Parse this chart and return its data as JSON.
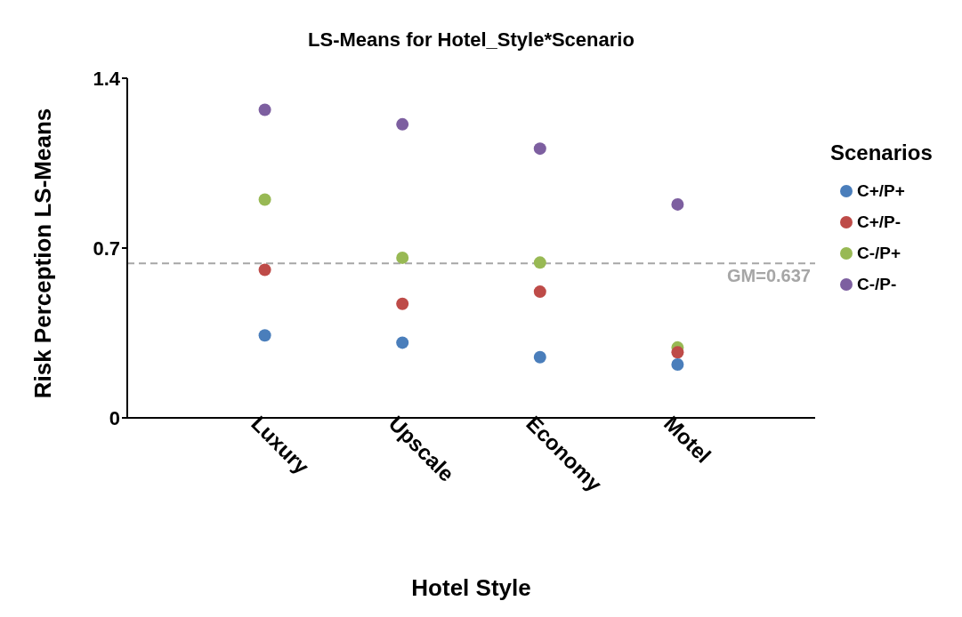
{
  "chart_data": {
    "type": "scatter",
    "title": "LS-Means for Hotel_Style*Scenario",
    "xlabel": "Hotel Style",
    "ylabel": "Risk Perception LS-Means",
    "legend_title": "Scenarios",
    "categories": [
      "Luxury",
      "Upscale",
      "Economy",
      "Motel"
    ],
    "series": [
      {
        "name": "C+/P+",
        "color": "#4a7ebb",
        "values": [
          0.34,
          0.31,
          0.25,
          0.22
        ]
      },
      {
        "name": "C+/P-",
        "color": "#be4b48",
        "values": [
          0.61,
          0.47,
          0.52,
          0.27
        ]
      },
      {
        "name": "C-/P+",
        "color": "#98b954",
        "values": [
          0.9,
          0.66,
          0.64,
          0.29
        ]
      },
      {
        "name": "C-/P-",
        "color": "#7d5fa0",
        "values": [
          1.27,
          1.21,
          1.11,
          0.88
        ]
      }
    ],
    "ylim": [
      0,
      1.4
    ],
    "yticks": [
      0,
      0.7,
      1.4
    ],
    "ref_lines": [
      {
        "axis": "y",
        "value": 0.637,
        "label": "GM=0.637",
        "color": "#a6a6a6",
        "line_style": "dashed"
      }
    ],
    "legend": "right",
    "marker": "circle"
  }
}
